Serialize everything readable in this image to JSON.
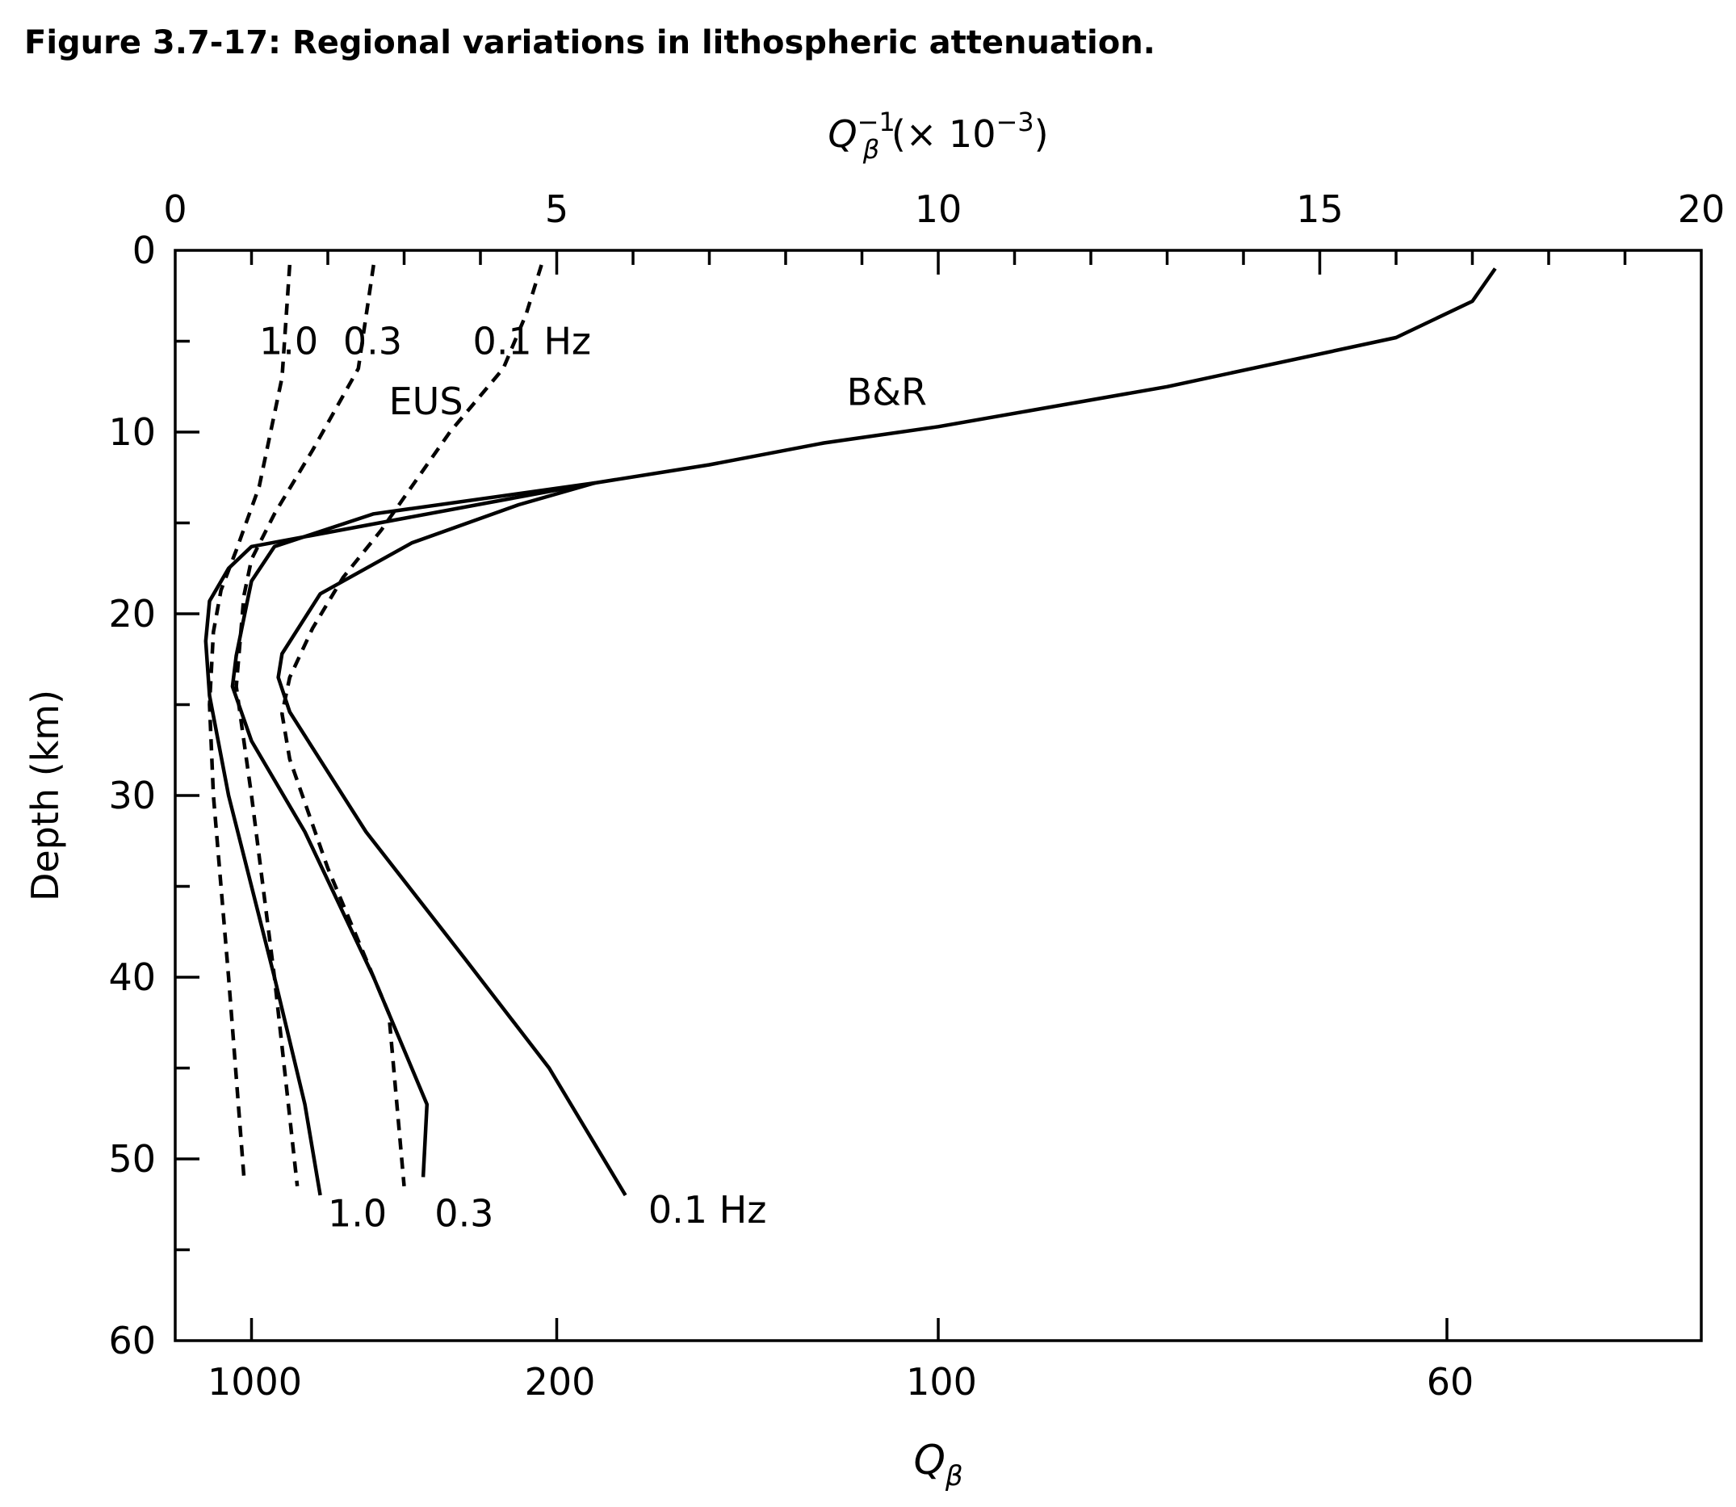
{
  "figure_title": "Figure 3.7-17: Regional variations in lithospheric attenuation.",
  "chart_data": {
    "type": "line",
    "ylabel": "Depth (km)",
    "ylim": [
      60,
      0
    ],
    "yticks": [
      "0",
      "10",
      "20",
      "30",
      "40",
      "50",
      "60"
    ],
    "top_axis": {
      "label_main": "Q",
      "label_sub": "β",
      "label_sup": "−1",
      "label_rest": " (× 10",
      "label_exp": "−3",
      "label_close": ")",
      "range": [
        0,
        20
      ],
      "ticks": [
        "0",
        "5",
        "10",
        "15",
        "20"
      ]
    },
    "bottom_axis": {
      "label_main": "Q",
      "label_sub": "β",
      "ticks": [
        {
          "label": "1000",
          "value": 1000
        },
        {
          "label": "200",
          "value": 200
        },
        {
          "label": "100",
          "value": 100
        },
        {
          "label": "60",
          "value": 60
        }
      ]
    },
    "series": [
      {
        "style": "solid",
        "x": [
          17.3,
          17.0,
          16.0,
          13.0,
          10.0,
          8.5,
          7.0,
          5.5,
          1.0,
          0.7,
          0.45,
          0.4,
          0.45,
          0.7,
          1.3,
          1.7,
          1.9
        ],
        "y": [
          1,
          2.8,
          4.8,
          7.5,
          9.7,
          10.6,
          11.8,
          12.8,
          16.3,
          17.5,
          19.3,
          21.5,
          24.5,
          30,
          40,
          47,
          52
        ]
      },
      {
        "style": "solid",
        "x": [
          5.5,
          2.6,
          1.3,
          1.0,
          0.95,
          0.8,
          0.75,
          1.0,
          1.7,
          2.6,
          3.3,
          3.25
        ],
        "y": [
          12.8,
          14.5,
          16.3,
          18.2,
          19.2,
          22.3,
          24.0,
          27.0,
          32.0,
          40.0,
          47.0,
          51.0
        ]
      },
      {
        "style": "solid",
        "x": [
          5.5,
          4.5,
          3.1,
          1.9,
          1.4,
          1.35,
          1.5,
          2.5,
          3.8,
          4.9,
          5.9
        ],
        "y": [
          12.8,
          14.0,
          16.1,
          18.9,
          22.2,
          23.5,
          25.4,
          32.0,
          39.0,
          45.0,
          52.0
        ]
      },
      {
        "style": "dotted",
        "x": [
          1.5,
          1.4,
          1.1,
          0.8,
          0.6,
          0.5,
          0.45,
          0.5,
          0.7,
          0.9
        ],
        "y": [
          0.8,
          7.0,
          13.0,
          16.5,
          18.7,
          21.0,
          25.0,
          30.0,
          40.0,
          51.0
        ]
      },
      {
        "style": "dotted",
        "x": [
          2.6,
          2.4,
          1.8,
          1.3,
          1.0,
          0.9,
          0.8,
          1.0,
          1.3,
          1.6
        ],
        "y": [
          0.8,
          6.5,
          11.0,
          14.5,
          17.0,
          19.0,
          24.0,
          30.0,
          40.0,
          51.5
        ]
      },
      {
        "style": "dotted",
        "x": [
          4.8,
          4.6,
          4.3,
          3.6,
          3.1,
          2.7,
          2.2,
          1.8,
          1.5,
          1.4,
          1.5,
          2.0,
          2.8,
          3.0
        ],
        "y": [
          0.8,
          3.5,
          6.5,
          10.0,
          13.0,
          15.4,
          18.0,
          20.8,
          23.5,
          25.5,
          28.0,
          34.0,
          42.0,
          51.5
        ]
      }
    ],
    "annotations": [
      {
        "text": "1.0",
        "x": 1.1,
        "y": 5.0
      },
      {
        "text": "0.3",
        "x": 2.2,
        "y": 5.0
      },
      {
        "text": "0.1 Hz",
        "x": 3.9,
        "y": 5.0
      },
      {
        "text": "EUS",
        "x": 2.8,
        "y": 8.3
      },
      {
        "text": "B&R",
        "x": 8.8,
        "y": 7.8
      },
      {
        "text": "1.0",
        "x": 2.0,
        "y": 53.0
      },
      {
        "text": "0.3",
        "x": 3.4,
        "y": 53.0
      },
      {
        "text": "0.1 Hz",
        "x": 6.2,
        "y": 52.8
      }
    ]
  }
}
